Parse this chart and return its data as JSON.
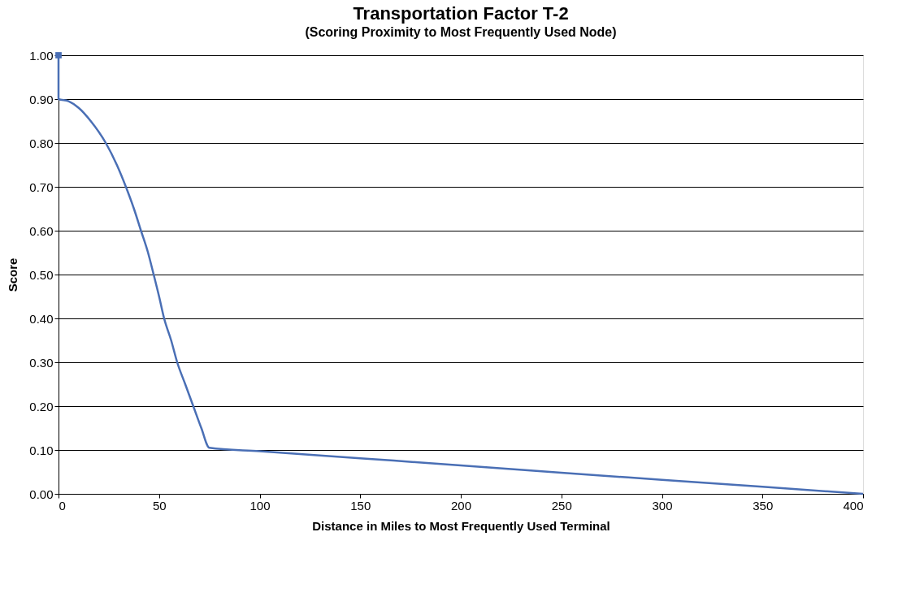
{
  "chart_data": {
    "type": "line",
    "title": "Transportation Factor T-2",
    "subtitle": "(Scoring Proximity to Most Frequently Used Node)",
    "xlabel": "Distance in Miles to Most Frequently Used Terminal",
    "ylabel": "Score",
    "series": [
      {
        "color": "#4a6fb5",
        "x": [
          0,
          0,
          5,
          10,
          16,
          23.5,
          29,
          33.5,
          37.5,
          41,
          44.5,
          47.3,
          50,
          52.5,
          56,
          59,
          63,
          67,
          71,
          75,
          100,
          150,
          200,
          250,
          300,
          350,
          400
        ],
        "values": [
          1.0,
          0.9,
          0.895,
          0.88,
          0.85,
          0.8,
          0.75,
          0.7,
          0.65,
          0.6,
          0.55,
          0.5,
          0.45,
          0.4,
          0.35,
          0.3,
          0.25,
          0.2,
          0.15,
          0.105,
          0.097,
          0.081,
          0.065,
          0.048,
          0.032,
          0.016,
          0.0
        ]
      },
      {
        "type": "scatter",
        "color": "#4a6fb5",
        "marker": "square",
        "x": [
          0
        ],
        "values": [
          1.0
        ]
      }
    ],
    "xlim": [
      0,
      400
    ],
    "xticks": [
      0,
      50,
      100,
      150,
      200,
      250,
      300,
      350,
      400
    ],
    "ylim": [
      0,
      1
    ],
    "yticks": [
      {
        "value": 0,
        "label": "0.00"
      },
      {
        "value": 0.1,
        "label": "0.10"
      },
      {
        "value": 0.2,
        "label": "0.20"
      },
      {
        "value": 0.3,
        "label": "0.30"
      },
      {
        "value": 0.4,
        "label": "0.40"
      },
      {
        "value": 0.5,
        "label": "0.50"
      },
      {
        "value": 0.6,
        "label": "0.60"
      },
      {
        "value": 0.7,
        "label": "0.70"
      },
      {
        "value": 0.8,
        "label": "0.80"
      },
      {
        "value": 0.9,
        "label": "0.90"
      },
      {
        "value": 1,
        "label": "1.00"
      }
    ],
    "grid": "y"
  }
}
